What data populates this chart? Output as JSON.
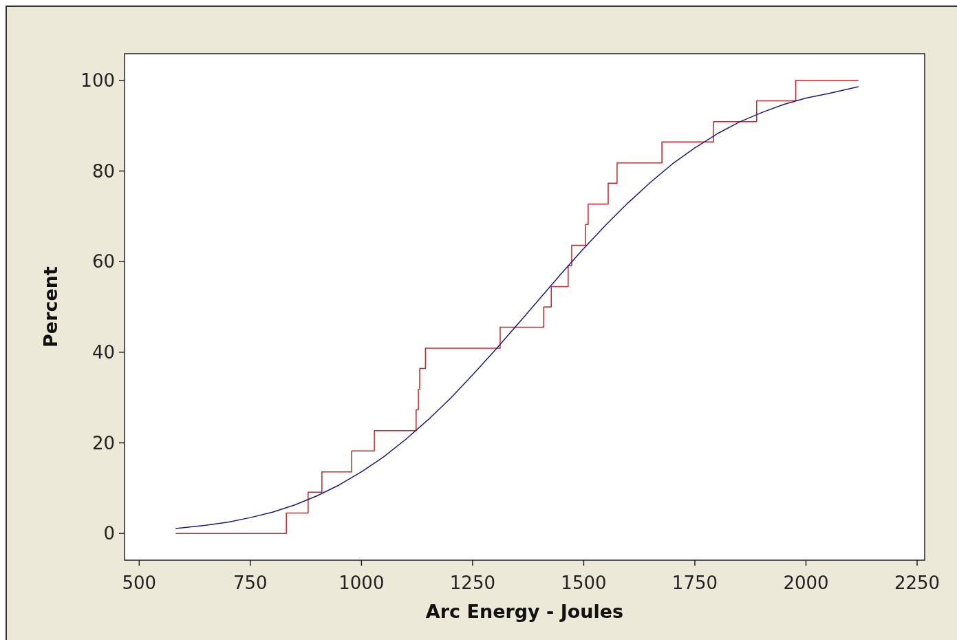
{
  "chart_data": {
    "type": "line",
    "xlabel": "Arc Energy - Joules",
    "ylabel": "Percent",
    "xlim": [
      467,
      2267
    ],
    "xticks": [
      500,
      750,
      1000,
      1250,
      1500,
      1750,
      2000,
      2250
    ],
    "ylim": [
      -5.9,
      105.9
    ],
    "yticks": [
      0,
      20,
      40,
      60,
      80,
      100
    ],
    "grid": false,
    "series": [
      {
        "type": "step",
        "color": "#c0282c",
        "x": [
          582,
          831,
          880,
          911,
          978,
          1029,
          1123,
          1128,
          1131,
          1144,
          1312,
          1410,
          1427,
          1465,
          1473,
          1504,
          1510,
          1555,
          1575,
          1676,
          1792,
          1889,
          1977,
          2118
        ],
        "values": [
          0,
          4.5,
          9.1,
          13.6,
          18.2,
          22.7,
          27.3,
          31.8,
          36.4,
          40.9,
          45.5,
          50,
          54.5,
          59.1,
          63.6,
          68.2,
          72.7,
          77.3,
          81.8,
          86.4,
          90.9,
          95.5,
          100,
          100
        ]
      },
      {
        "color": "#1c1a7c",
        "x": [
          582,
          650,
          700,
          750,
          800,
          850,
          900,
          950,
          1000,
          1050,
          1100,
          1150,
          1200,
          1250,
          1300,
          1350,
          1400,
          1450,
          1500,
          1550,
          1600,
          1650,
          1700,
          1750,
          1800,
          1850,
          1900,
          1950,
          2000,
          2050,
          2118
        ],
        "values": [
          1.1,
          1.8,
          2.5,
          3.5,
          4.7,
          6.3,
          8.3,
          10.7,
          13.6,
          16.9,
          20.8,
          25.1,
          29.8,
          35,
          40.4,
          46,
          51.7,
          57.4,
          62.9,
          68.1,
          73,
          77.5,
          81.6,
          85.1,
          88.2,
          90.8,
          92.9,
          94.7,
          96.1,
          97.1,
          98.6
        ]
      }
    ]
  }
}
